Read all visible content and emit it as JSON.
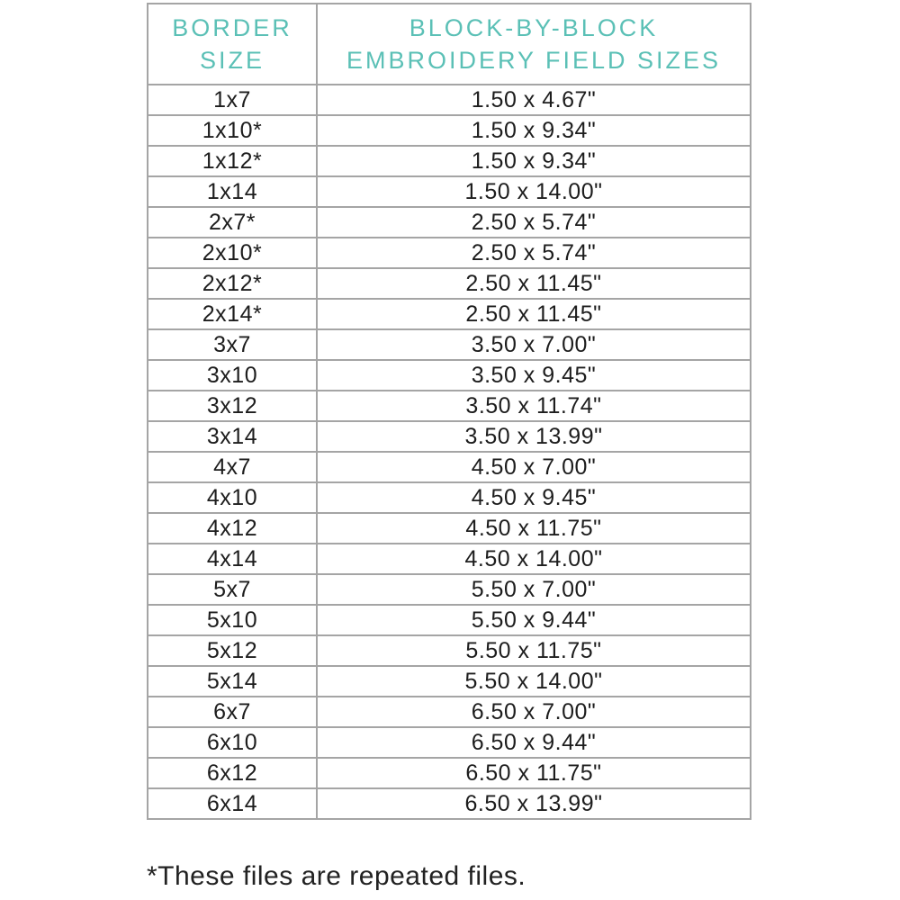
{
  "chart_data": {
    "type": "table",
    "title": "",
    "columns": [
      "BORDER SIZE",
      "BLOCK-BY-BLOCK EMBROIDERY FIELD SIZES"
    ],
    "rows": [
      [
        "1x7",
        "1.50 x 4.67\""
      ],
      [
        "1x10*",
        "1.50 x 9.34\""
      ],
      [
        "1x12*",
        "1.50 x 9.34\""
      ],
      [
        "1x14",
        "1.50 x 14.00\""
      ],
      [
        "2x7*",
        "2.50 x 5.74\""
      ],
      [
        "2x10*",
        "2.50 x 5.74\""
      ],
      [
        "2x12*",
        "2.50 x 11.45\""
      ],
      [
        "2x14*",
        "2.50 x 11.45\""
      ],
      [
        "3x7",
        "3.50 x 7.00\""
      ],
      [
        "3x10",
        "3.50 x 9.45\""
      ],
      [
        "3x12",
        "3.50 x 11.74\""
      ],
      [
        "3x14",
        "3.50 x 13.99\""
      ],
      [
        "4x7",
        "4.50 x 7.00\""
      ],
      [
        "4x10",
        "4.50 x 9.45\""
      ],
      [
        "4x12",
        "4.50 x 11.75\""
      ],
      [
        "4x14",
        "4.50 x 14.00\""
      ],
      [
        "5x7",
        "5.50 x 7.00\""
      ],
      [
        "5x10",
        "5.50 x 9.44\""
      ],
      [
        "5x12",
        "5.50 x 11.75\""
      ],
      [
        "5x14",
        "5.50 x 14.00\""
      ],
      [
        "6x7",
        "6.50 x 7.00\""
      ],
      [
        "6x10",
        "6.50 x 9.44\""
      ],
      [
        "6x12",
        "6.50 x 11.75\""
      ],
      [
        "6x14",
        "6.50 x 13.99\""
      ]
    ],
    "annotations": [
      "*These files are repeated files."
    ],
    "legend_position": "none",
    "grid": true
  },
  "header": {
    "col1_lines": [
      "BORDER",
      "SIZE"
    ],
    "col2_lines": [
      "BLOCK-BY-BLOCK",
      "EMBROIDERY FIELD SIZES"
    ]
  },
  "footnote": "*These files are repeated files.",
  "colors": {
    "accent_teal": "#5bc0b6",
    "body_text": "#1d1d1d",
    "table_border": "#a5a5a5",
    "background": "#ffffff"
  }
}
